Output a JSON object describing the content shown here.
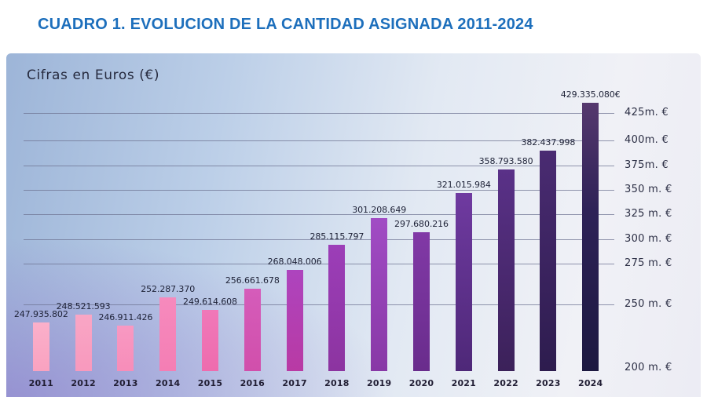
{
  "title": "CUADRO 1. EVOLUCION DE LA CANTIDAD ASIGNADA 2011-2024",
  "colors": {
    "title_blue": "#1d6fbc",
    "gridline": "#6e7391",
    "text_dark": "#21243a"
  },
  "chart_data": {
    "type": "bar",
    "title": "CUADRO 1. EVOLUCION DE LA CANTIDAD ASIGNADA 2011-2024",
    "subtitle": "Cifras en Euros (€)",
    "currency": "EUR",
    "categories": [
      "2011",
      "2012",
      "2013",
      "2014",
      "2015",
      "2016",
      "2017",
      "2018",
      "2019",
      "2020",
      "2021",
      "2022",
      "2023",
      "2024"
    ],
    "values": [
      247935802,
      248521593,
      246911426,
      252287370,
      249614608,
      256661678,
      268048006,
      285115797,
      301208649,
      297680216,
      321015984,
      358793580,
      382437998,
      429335080
    ],
    "value_labels": [
      "247.935.802",
      "248.521.593",
      "246.911.426",
      "252.287.370",
      "249.614.608",
      "256.661.678",
      "268.048.006",
      "285.115.797",
      "301.208.649",
      "297.680.216",
      "321.015.984",
      "358.793.580",
      "382.437.998",
      "429.335.080€"
    ],
    "y_tick_labels": [
      "425m. €",
      "400m. €",
      "375m. €",
      "350 m. €",
      "325 m. €",
      "300 m. €",
      "275 m. €",
      "250 m. €",
      "200 m. €"
    ],
    "y_tick_values": [
      425000000,
      400000000,
      375000000,
      350000000,
      325000000,
      300000000,
      275000000,
      250000000,
      200000000
    ],
    "xlabel": "",
    "ylabel": "",
    "ylim": [
      200000000,
      437000000
    ],
    "grid": true,
    "legend": false,
    "axis_side": "right",
    "bar_gradients": [
      [
        "#fbb0ca",
        "#f9a2c0"
      ],
      [
        "#f9a6c5",
        "#f899bd"
      ],
      [
        "#f899c2",
        "#f78db9"
      ],
      [
        "#f68abd",
        "#f47eb4"
      ],
      [
        "#f078b8",
        "#ee6cae"
      ],
      [
        "#d55cba",
        "#d14fab"
      ],
      [
        "#ad44be",
        "#b93aa4"
      ],
      [
        "#9c3eb8",
        "#8c34a0"
      ],
      [
        "#a14cc4",
        "#8838a6"
      ],
      [
        "#8139a6",
        "#692c8c"
      ],
      [
        "#6f3aa0",
        "#4e2878"
      ],
      [
        "#5a3188",
        "#3b2159"
      ],
      [
        "#4a2b72",
        "#2d1c4e"
      ],
      [
        "#55386e",
        "#2e2257 40%",
        "#1c1840"
      ]
    ]
  }
}
